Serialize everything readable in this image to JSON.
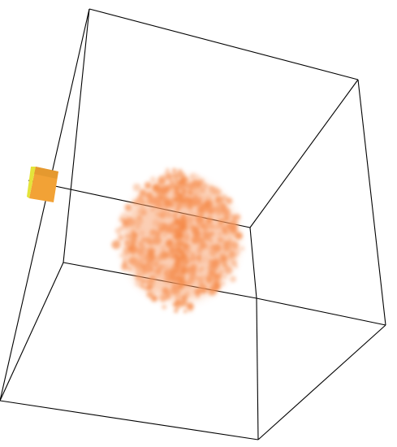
{
  "scene": {
    "background": "#ffffff",
    "frame_color": "#000000",
    "cloud_color": "#f7955a",
    "cloud_core_color": "#f58a48",
    "marker_face_color": "#f0a030",
    "marker_edge_color": "#e8e830",
    "marker_shading_color": "#c87818"
  }
}
